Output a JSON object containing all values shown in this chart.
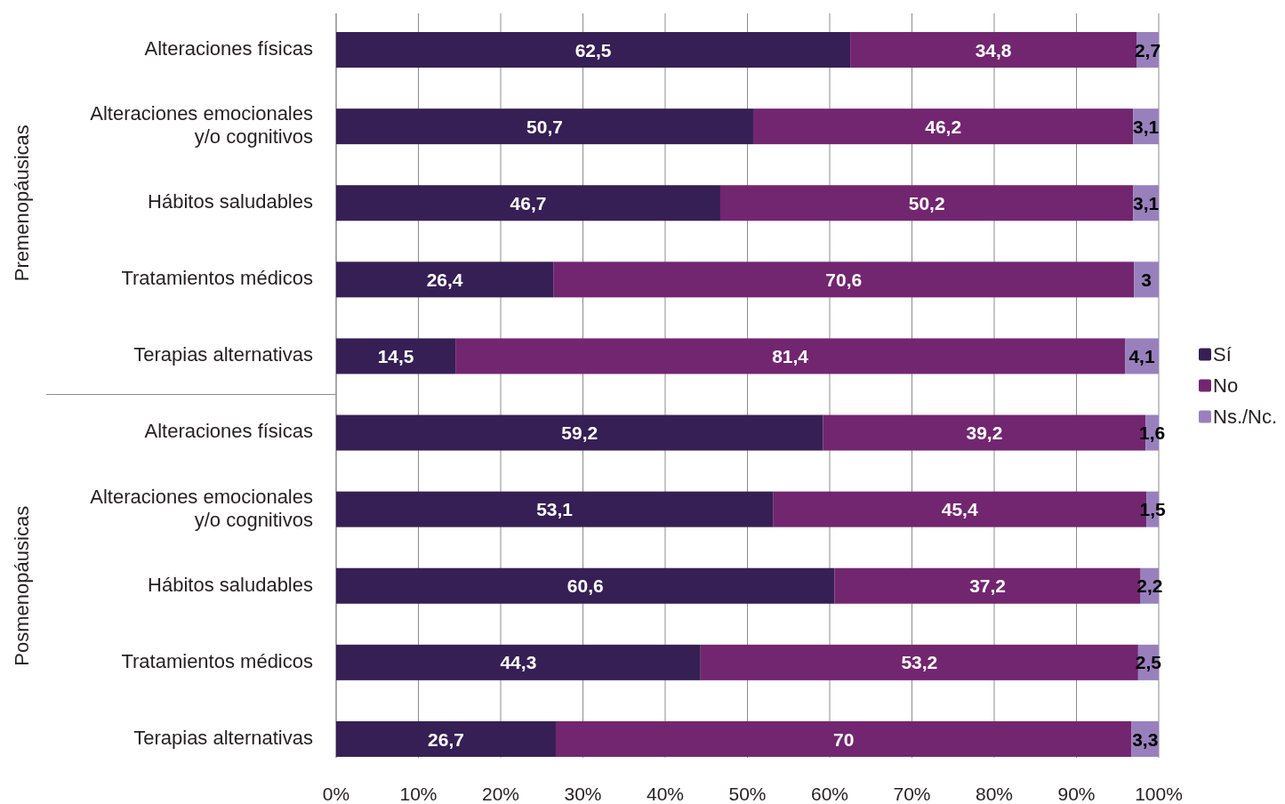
{
  "chart_data": {
    "type": "bar",
    "orientation": "horizontal",
    "stacked": true,
    "categories": [
      "Alteraciones físicas",
      "Alteraciones emocionales\ny/o cognitivos",
      "Hábitos saludables",
      "Tratamientos médicos",
      "Terapias alternativas",
      "Alteraciones físicas",
      "Alteraciones emocionales\ny/o cognitivos",
      "Hábitos saludables",
      "Tratamientos médicos",
      "Terapias alternativas"
    ],
    "series": [
      {
        "name": "Sí",
        "color": "#361f54",
        "values": [
          62.5,
          50.7,
          46.7,
          26.4,
          14.5,
          59.2,
          53.1,
          60.6,
          44.3,
          26.7
        ],
        "value_labels": [
          "62,5",
          "50,7",
          "46,7",
          "26,4",
          "14,5",
          "59,2",
          "53,1",
          "60,6",
          "44,3",
          "26,7"
        ]
      },
      {
        "name": "No",
        "color": "#72266f",
        "values": [
          34.8,
          46.2,
          50.2,
          70.6,
          81.4,
          39.2,
          45.4,
          37.2,
          53.2,
          70
        ],
        "value_labels": [
          "34,8",
          "46,2",
          "50,2",
          "70,6",
          "81,4",
          "39,2",
          "45,4",
          "37,2",
          "53,2",
          "70"
        ]
      },
      {
        "name": "Ns./Nc.",
        "color": "#9880bd",
        "values": [
          2.7,
          3.1,
          3.1,
          3,
          4.1,
          1.6,
          1.5,
          2.2,
          2.5,
          3.3
        ],
        "value_labels": [
          "2,7",
          "3,1",
          "3,1",
          "3",
          "4,1",
          "1,6",
          "1,5",
          "2,2",
          "2,5",
          "3,3"
        ]
      }
    ],
    "xlim": [
      0,
      100
    ],
    "xticks": [
      {
        "value": 0,
        "label": "0%"
      },
      {
        "value": 10,
        "label": "10%"
      },
      {
        "value": 20,
        "label": "20%"
      },
      {
        "value": 30,
        "label": "30%"
      },
      {
        "value": 40,
        "label": "40%"
      },
      {
        "value": 50,
        "label": "50%"
      },
      {
        "value": 60,
        "label": "60%"
      },
      {
        "value": 70,
        "label": "70%"
      },
      {
        "value": 80,
        "label": "80%"
      },
      {
        "value": 90,
        "label": "90%"
      },
      {
        "value": 100,
        "label": "100%"
      }
    ],
    "grid": "x",
    "legend": "right",
    "annotations": [
      "Premenopáusicas",
      "Posmenopáusicas"
    ]
  }
}
